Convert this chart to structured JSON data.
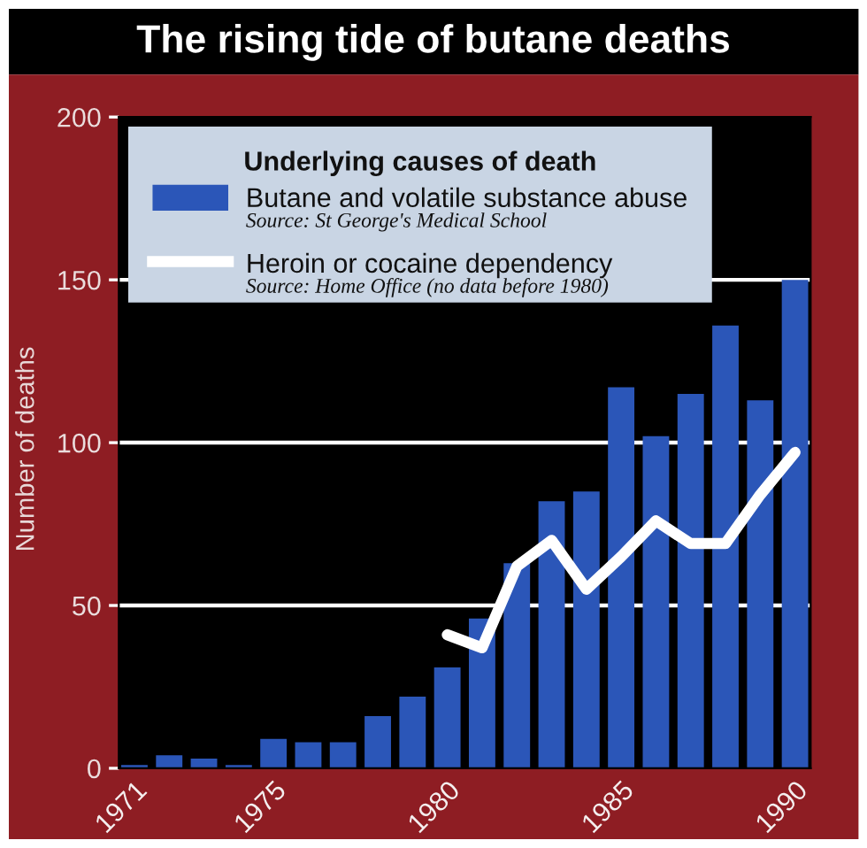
{
  "chart_data": {
    "type": "bar",
    "title": "The rising tide of butane deaths",
    "ylabel": "Number of deaths",
    "legend_title": "Underlying causes of death",
    "categories": [
      "1971",
      null,
      null,
      null,
      "1975",
      null,
      null,
      null,
      null,
      "1980",
      null,
      null,
      null,
      null,
      "1985",
      null,
      null,
      null,
      null,
      "1990"
    ],
    "series": [
      {
        "name": "Butane and volatile substance abuse",
        "color": "#2b56b8",
        "values": [
          1,
          4,
          3,
          1,
          9,
          8,
          8,
          16,
          22,
          31,
          46,
          63,
          82,
          85,
          117,
          102,
          115,
          136,
          113,
          150
        ]
      },
      {
        "name": "Heroin or cocaine dependency",
        "type": "line",
        "color": "#ffffff",
        "values": [
          null,
          null,
          null,
          null,
          null,
          null,
          null,
          null,
          null,
          41,
          37,
          62,
          70,
          55,
          65,
          76,
          69,
          69,
          84,
          97
        ]
      }
    ],
    "ylim": [
      0,
      200
    ],
    "yticks": [
      0,
      50,
      100,
      150,
      200
    ],
    "grid": "y",
    "legend": "top left",
    "marker": "none",
    "line_style": "solid",
    "annotations": [
      "Source: St George's Medical School",
      "Source: Home Office (no data before 1980)"
    ]
  }
}
